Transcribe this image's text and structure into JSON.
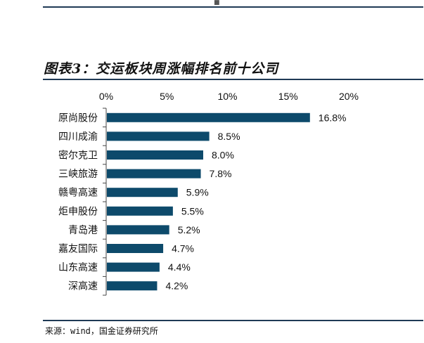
{
  "header_mark": "■",
  "title": "图表3：交运板块周涨幅排名前十公司",
  "source": "来源：wind，国金证券研究所",
  "colors": {
    "bar": "#0d4a6b",
    "rule": "#1f3a55",
    "axis": "#444444"
  },
  "chart_data": {
    "type": "bar",
    "orientation": "horizontal",
    "title": "",
    "xlabel": "",
    "ylabel": "",
    "xlim": [
      0,
      20
    ],
    "x_ticks": [
      "0%",
      "5%",
      "10%",
      "15%",
      "20%"
    ],
    "x_tick_values": [
      0,
      5,
      10,
      15,
      20
    ],
    "x_axis_position": "top",
    "grid": false,
    "categories": [
      "原尚股份",
      "四川成渝",
      "密尔克卫",
      "三峡旅游",
      "赣粤高速",
      "炬申股份",
      "青岛港",
      "嘉友国际",
      "山东高速",
      "深高速"
    ],
    "values": [
      16.8,
      8.5,
      8.0,
      7.8,
      5.9,
      5.5,
      5.2,
      4.7,
      4.4,
      4.2
    ],
    "data_labels": [
      "16.8%",
      "8.5%",
      "8.0%",
      "7.8%",
      "5.9%",
      "5.5%",
      "5.2%",
      "4.7%",
      "4.4%",
      "4.2%"
    ]
  }
}
